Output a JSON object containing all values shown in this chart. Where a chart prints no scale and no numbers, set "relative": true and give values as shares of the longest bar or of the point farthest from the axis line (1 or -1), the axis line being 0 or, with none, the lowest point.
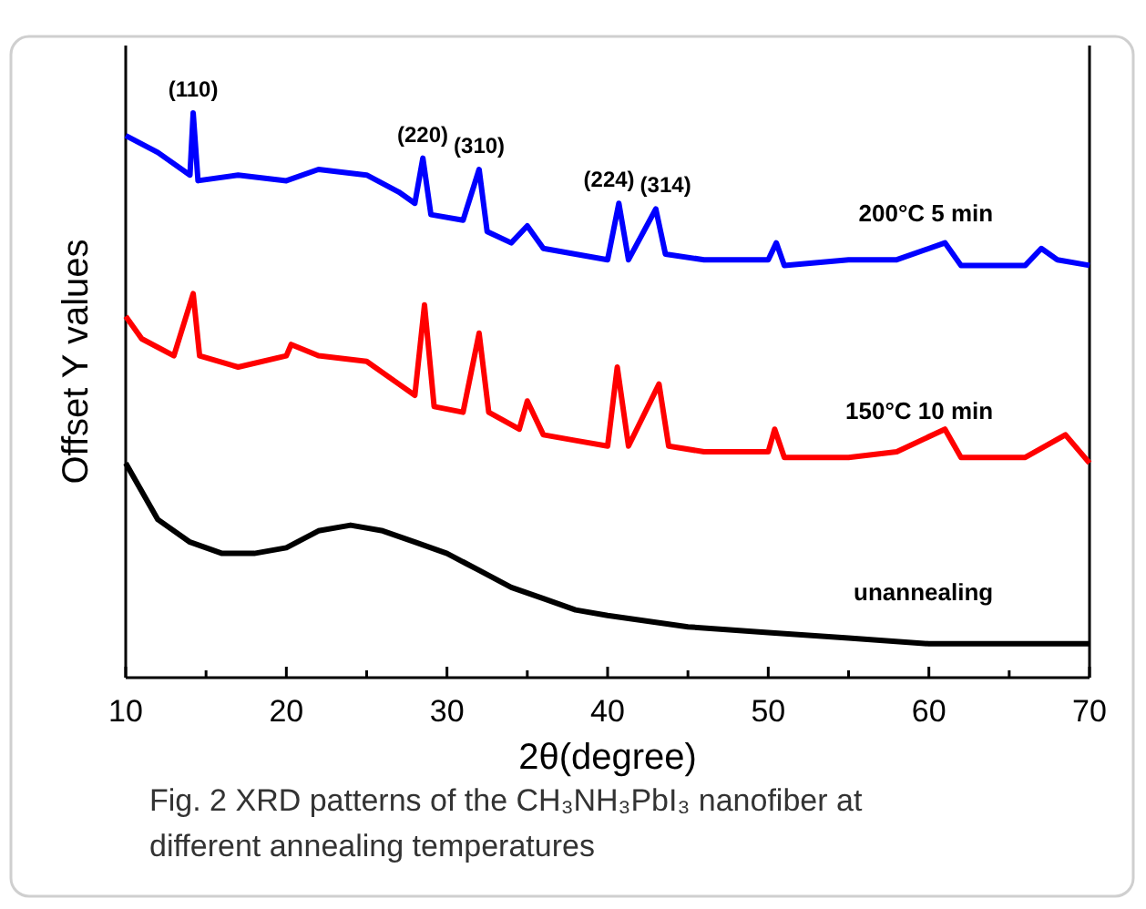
{
  "chart_data": {
    "type": "line",
    "relative": true,
    "xlabel": "2θ(degree)",
    "ylabel": "Offset Y values",
    "xlim": [
      10,
      70
    ],
    "xticks": [
      10,
      {
        "value": 15,
        "label": null
      },
      20,
      {
        "value": 25,
        "label": null
      },
      30,
      {
        "value": 35,
        "label": null
      },
      40,
      {
        "value": 45,
        "label": null
      },
      50,
      {
        "value": 55,
        "label": null
      },
      60,
      {
        "value": 65,
        "label": null
      },
      70
    ],
    "line_style": "solid",
    "marker": "none",
    "legend": false,
    "grid": false,
    "series": [
      {
        "name": "200°C 5 min",
        "color": "#0000ff",
        "x": [
          10,
          12,
          14,
          14.2,
          14.5,
          17,
          20,
          22,
          25,
          27,
          28,
          28.5,
          29,
          31,
          32,
          32.5,
          34,
          35,
          36,
          38,
          40,
          40.7,
          41.3,
          43,
          43.6,
          46,
          50,
          50.5,
          51,
          55,
          58,
          61,
          62,
          66,
          67,
          68,
          70
        ],
        "values": [
          0.96,
          0.93,
          0.89,
          1.0,
          0.88,
          0.89,
          0.88,
          0.9,
          0.89,
          0.86,
          0.84,
          0.92,
          0.82,
          0.81,
          0.9,
          0.79,
          0.77,
          0.8,
          0.76,
          0.75,
          0.74,
          0.84,
          0.74,
          0.83,
          0.75,
          0.74,
          0.74,
          0.77,
          0.73,
          0.74,
          0.74,
          0.77,
          0.73,
          0.73,
          0.76,
          0.74,
          0.73
        ]
      },
      {
        "name": "150°C 10 min",
        "color": "#ff0000",
        "x": [
          10,
          11,
          13,
          14.2,
          14.6,
          17,
          20,
          20.3,
          22,
          25,
          27,
          28,
          28.6,
          29.2,
          31,
          32,
          32.6,
          34.5,
          35,
          36,
          38,
          40,
          40.6,
          41.3,
          43.2,
          43.8,
          46,
          50,
          50.4,
          51,
          55,
          58,
          61,
          62,
          66,
          68.5,
          70
        ],
        "values": [
          0.64,
          0.6,
          0.57,
          0.68,
          0.57,
          0.55,
          0.57,
          0.59,
          0.57,
          0.56,
          0.52,
          0.5,
          0.66,
          0.48,
          0.47,
          0.61,
          0.47,
          0.44,
          0.49,
          0.43,
          0.42,
          0.41,
          0.55,
          0.41,
          0.52,
          0.41,
          0.4,
          0.4,
          0.44,
          0.39,
          0.39,
          0.4,
          0.44,
          0.39,
          0.39,
          0.43,
          0.38
        ]
      },
      {
        "name": "unannealing",
        "color": "#000000",
        "x": [
          10,
          11,
          12,
          14,
          16,
          18,
          20,
          22,
          24,
          26,
          28,
          30,
          32,
          34,
          36,
          38,
          40,
          45,
          50,
          55,
          60,
          65,
          70
        ],
        "values": [
          0.38,
          0.33,
          0.28,
          0.24,
          0.22,
          0.22,
          0.23,
          0.26,
          0.27,
          0.26,
          0.24,
          0.22,
          0.19,
          0.16,
          0.14,
          0.12,
          0.11,
          0.09,
          0.08,
          0.07,
          0.06,
          0.06,
          0.06
        ]
      }
    ],
    "annotations": [
      {
        "text": "(110)",
        "x": 14.2,
        "y": 1.0
      },
      {
        "text": "(220)",
        "x": 28.5,
        "y": 0.92
      },
      {
        "text": "(310)",
        "x": 32,
        "y": 0.9
      },
      {
        "text": "(224)",
        "x": 40.7,
        "y": 0.84
      },
      {
        "text": "(314)",
        "x": 43,
        "y": 0.83
      },
      "Fig. 2 XRD patterns of the CH₃NH₃PbI₃ nanofiber at different annealing temperatures"
    ]
  }
}
